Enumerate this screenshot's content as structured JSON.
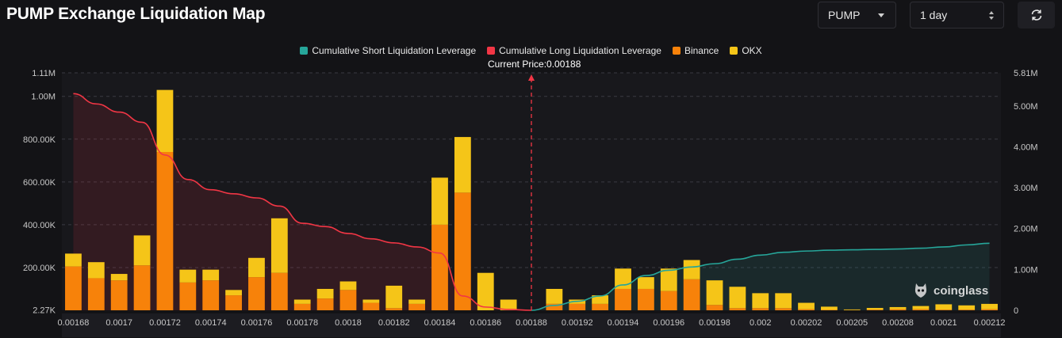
{
  "header": {
    "title": "PUMP Exchange Liquidation Map",
    "symbol_select": "PUMP",
    "range_select": "1 day"
  },
  "watermark": "coinglass",
  "colors": {
    "short_line": "#26a69a",
    "long_line": "#f23645",
    "binance": "#f7820a",
    "okx": "#f5c518",
    "background": "#131316"
  },
  "chart_data": {
    "type": "bar",
    "title": "PUMP Exchange Liquidation Map",
    "current_price_label": "Current Price:0.00188",
    "current_price": 0.00188,
    "current_price_index": 20,
    "legend": [
      "Cumulative Short Liquidation Leverage",
      "Cumulative Long Liquidation Leverage",
      "Binance",
      "OKX"
    ],
    "x_tick_labels": [
      "0.00168",
      "0.0017",
      "0.00172",
      "0.00174",
      "0.00176",
      "0.00178",
      "0.0018",
      "0.00182",
      "0.00184",
      "0.00186",
      "0.00188",
      "0.00192",
      "0.00194",
      "0.00196",
      "0.00198",
      "0.002",
      "0.00202",
      "0.00205",
      "0.00208",
      "0.0021",
      "0.00212"
    ],
    "y_left": {
      "ticks": [
        "1.11M",
        "1.00M",
        "800.00K",
        "600.00K",
        "400.00K",
        "200.00K",
        "2.27K"
      ],
      "tick_values": [
        1110000,
        1000000,
        800000,
        600000,
        400000,
        200000,
        2270
      ],
      "range": [
        0,
        1110000
      ]
    },
    "y_right": {
      "ticks": [
        "5.81M",
        "5.00M",
        "4.00M",
        "3.00M",
        "2.00M",
        "1.00M",
        "0"
      ],
      "tick_values": [
        5810000,
        5000000,
        4000000,
        3000000,
        2000000,
        1000000,
        0
      ],
      "range": [
        0,
        5810000
      ]
    },
    "series": [
      {
        "name": "Binance",
        "stack": "bars",
        "values": [
          205000,
          150000,
          140000,
          210000,
          740000,
          130000,
          140000,
          70000,
          155000,
          175000,
          30000,
          55000,
          95000,
          35000,
          10000,
          30000,
          400000,
          550000,
          0,
          0,
          0,
          30000,
          30000,
          30000,
          100000,
          100000,
          90000,
          145000,
          25000,
          10000,
          10000,
          10000,
          5000,
          2000,
          1000,
          3000,
          5000,
          5000,
          3000,
          3000,
          5000
        ]
      },
      {
        "name": "OKX",
        "stack": "bars",
        "values": [
          60000,
          75000,
          30000,
          140000,
          290000,
          60000,
          50000,
          25000,
          90000,
          255000,
          20000,
          45000,
          40000,
          15000,
          105000,
          20000,
          220000,
          260000,
          175000,
          50000,
          0,
          70000,
          20000,
          40000,
          95000,
          55000,
          105000,
          90000,
          115000,
          100000,
          70000,
          70000,
          30000,
          15000,
          3000,
          8000,
          10000,
          15000,
          25000,
          20000,
          25000
        ]
      },
      {
        "name": "Cumulative Long Liquidation Leverage",
        "axis": "right",
        "values": [
          5300000.0,
          5050000.0,
          4850000.0,
          4600000.0,
          3800000.0,
          3200000.0,
          2950000.0,
          2850000.0,
          2750000.0,
          2550000.0,
          2130000.0,
          2050000.0,
          1880000.0,
          1750000.0,
          1650000.0,
          1550000.0,
          1400000.0,
          350000.0,
          80000.0,
          20000.0,
          0,
          null,
          null,
          null,
          null,
          null,
          null,
          null,
          null,
          null,
          null,
          null,
          null,
          null,
          null,
          null,
          null,
          null,
          null,
          null,
          null
        ]
      },
      {
        "name": "Cumulative Short Liquidation Leverage",
        "axis": "right",
        "values": [
          null,
          null,
          null,
          null,
          null,
          null,
          null,
          null,
          null,
          null,
          null,
          null,
          null,
          null,
          null,
          null,
          null,
          null,
          null,
          null,
          0,
          120000.0,
          220000.0,
          350000.0,
          620000.0,
          850000.0,
          980000.0,
          1060000.0,
          1140000.0,
          1250000.0,
          1350000.0,
          1420000.0,
          1450000.0,
          1470000.0,
          1480000.0,
          1490000.0,
          1500000.0,
          1520000.0,
          1550000.0,
          1600000.0,
          1640000.0
        ]
      }
    ]
  }
}
